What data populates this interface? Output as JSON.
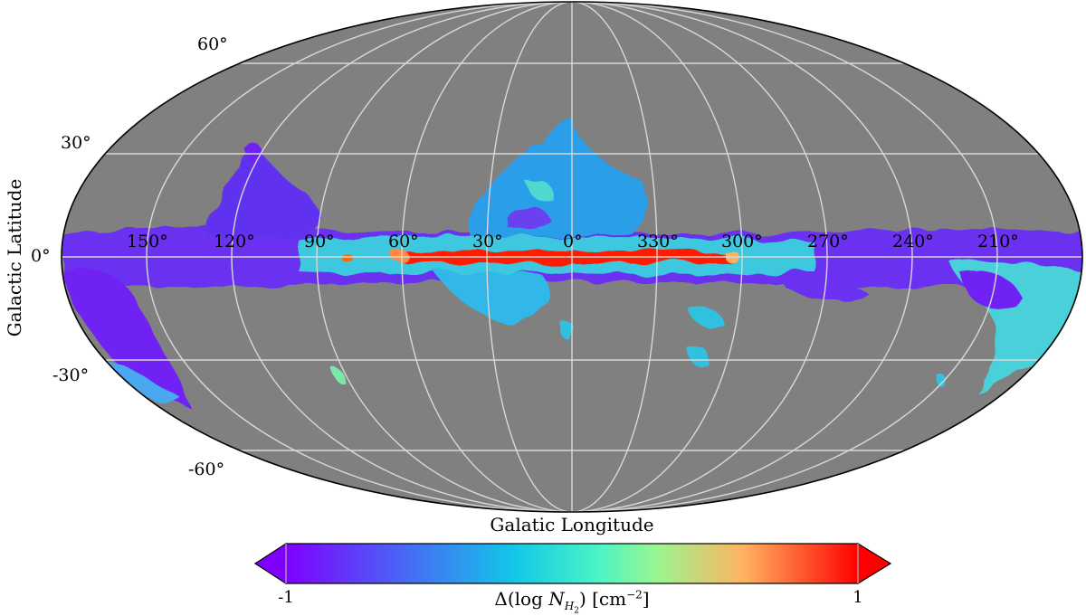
{
  "map": {
    "projection": "mollweide",
    "background_color": "#808080",
    "grid_color": "#d0d0d0",
    "xlabel": "Galatic Longitude",
    "ylabel": "Galactic Latitude",
    "longitude_ticks": [
      "150°",
      "120°",
      "90°",
      "60°",
      "30°",
      "0°",
      "330°",
      "300°",
      "270°",
      "240°",
      "210°"
    ],
    "latitude_ticks": [
      "60°",
      "30°",
      "0°",
      "-30°",
      "-60°"
    ]
  },
  "colorbar": {
    "label": "Δ(log N_H2) [cm⁻²]",
    "label_main": "Δ(log ",
    "label_var": "N",
    "label_sub": "H",
    "label_sub2": "2",
    "label_unit": ") [cm",
    "label_exp": "−2",
    "label_close": "]",
    "min_label": "-1",
    "max_label": "1",
    "range": [
      -1,
      1
    ],
    "colormap": "rainbow",
    "extend": "both"
  }
}
